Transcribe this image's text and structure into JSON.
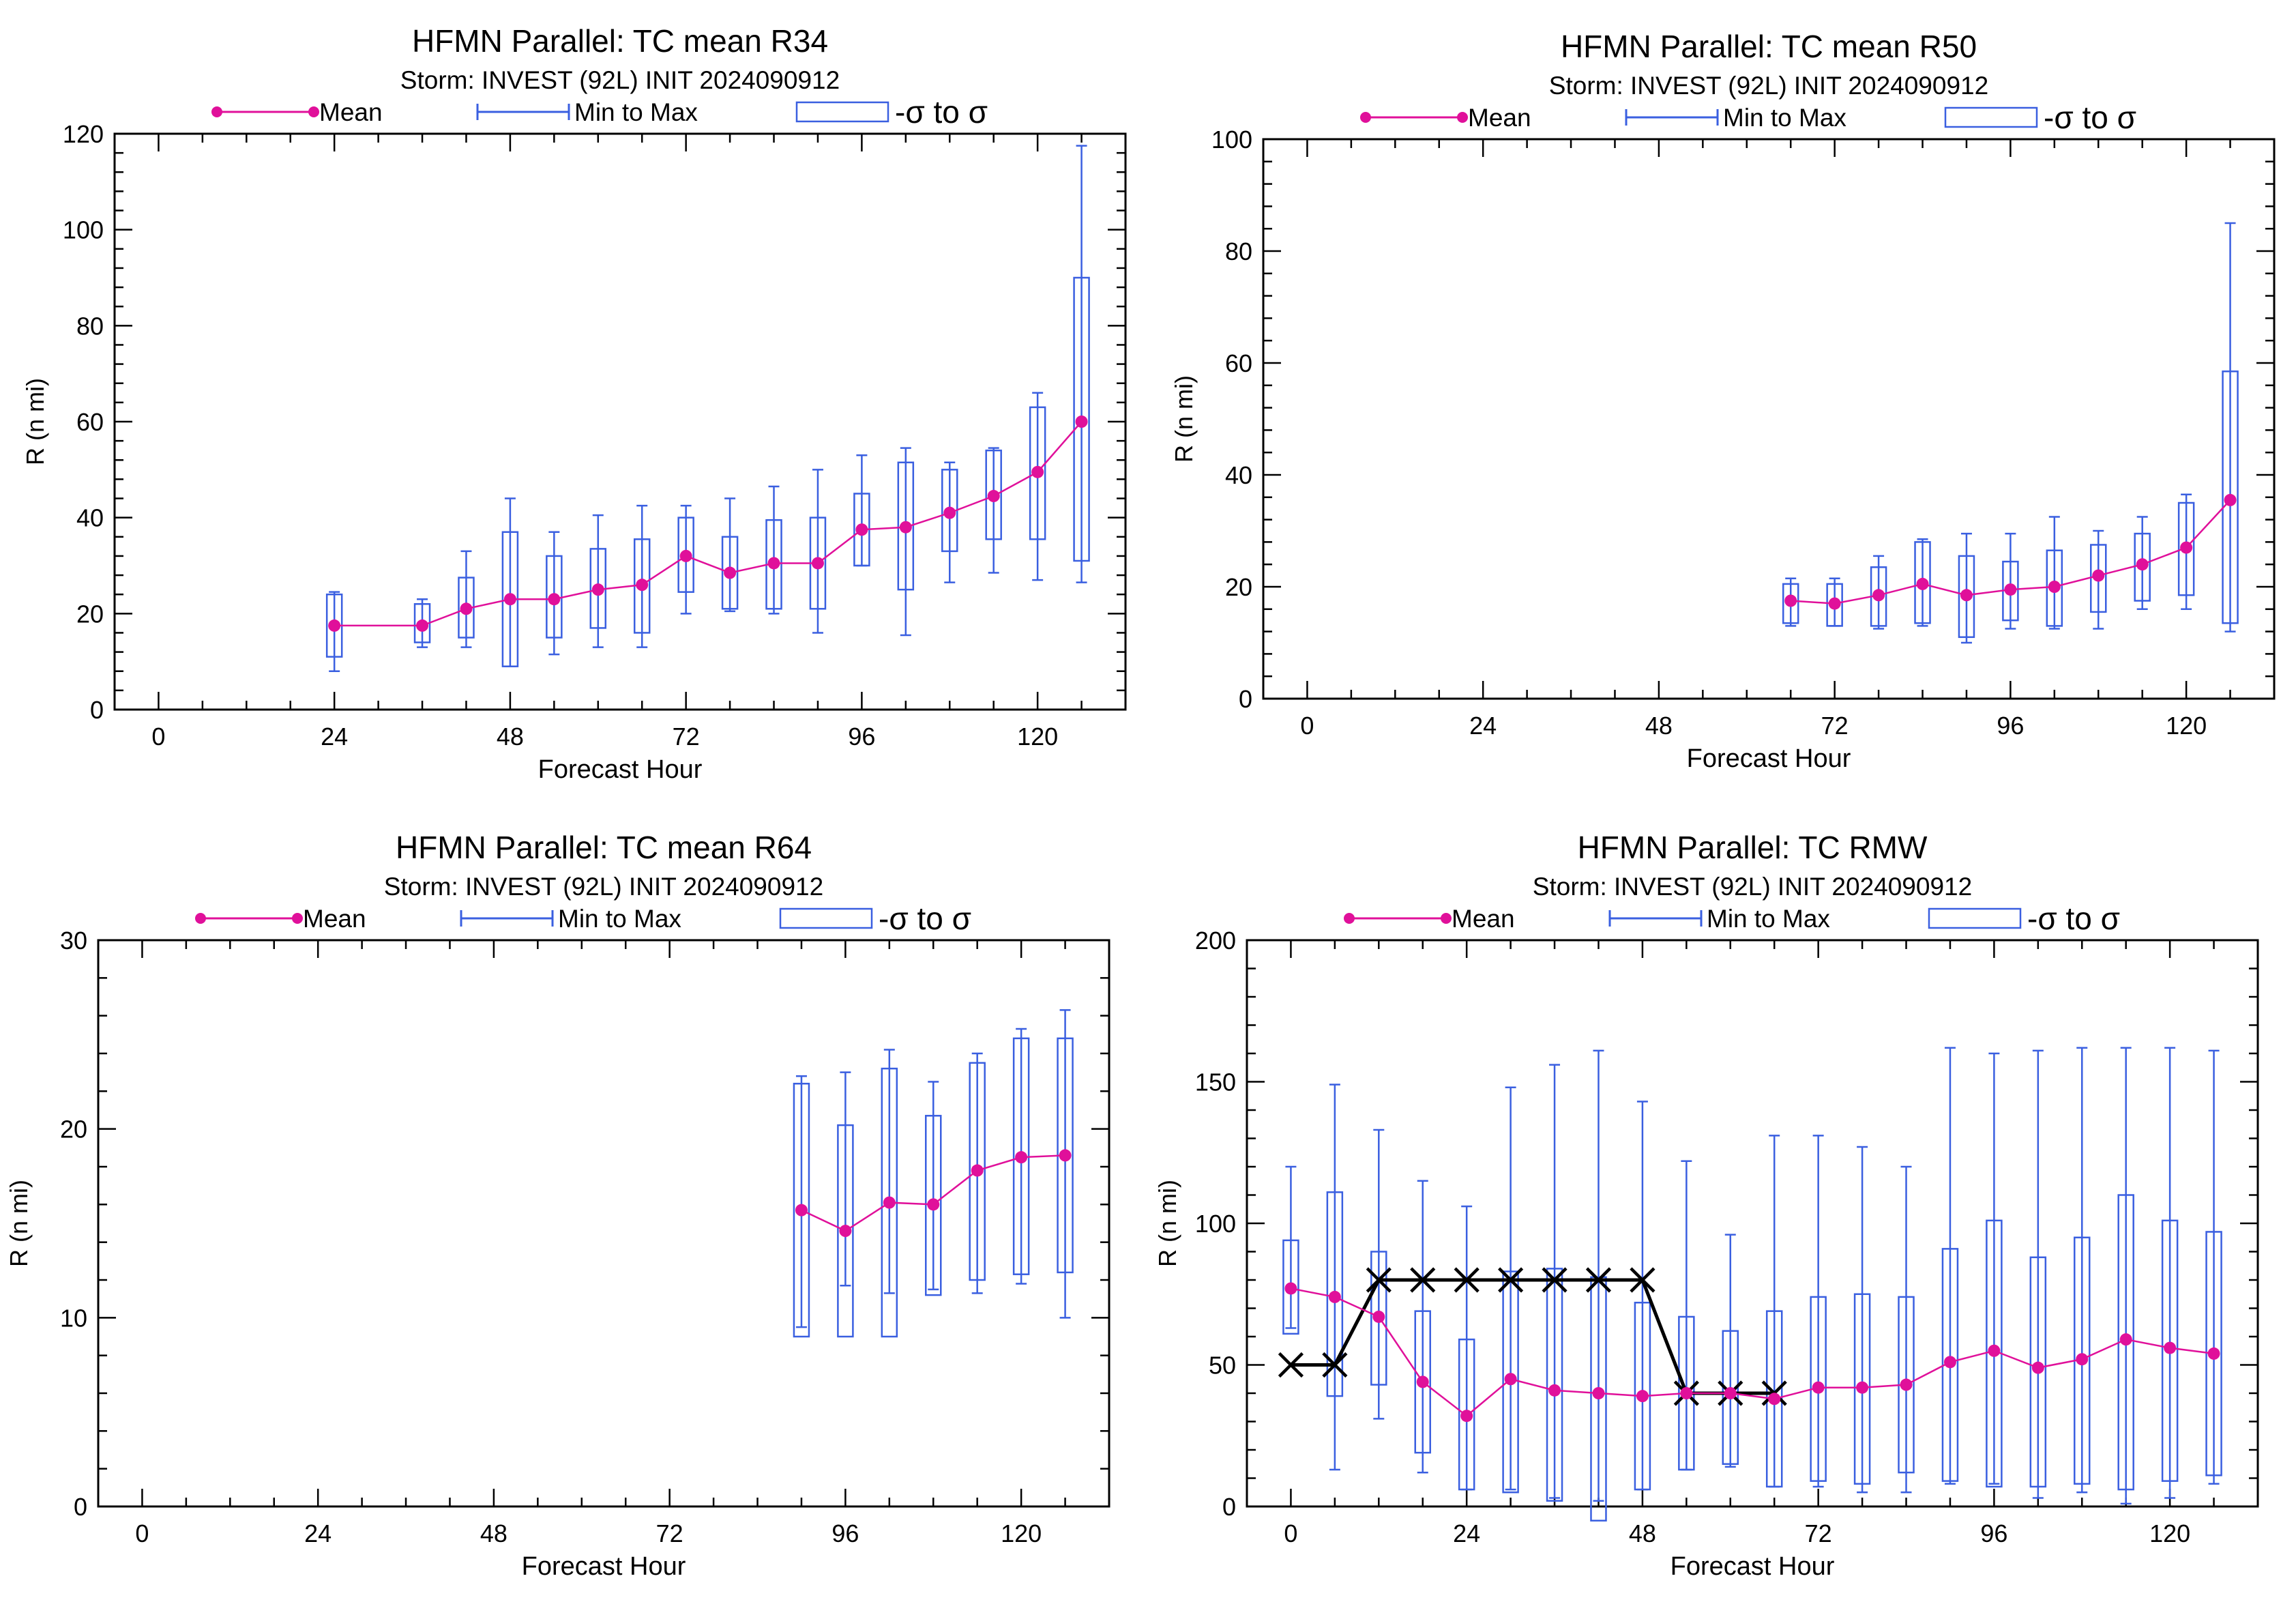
{
  "legend": {
    "mean_label": "Mean",
    "minmax_label": "Min to Max",
    "sigma_label": "-σ to σ"
  },
  "colors": {
    "mean": "#E0109A",
    "box": "#3A5FE0",
    "best_track": "#000000",
    "axis": "#000000"
  },
  "chart_data": [
    {
      "type": "box",
      "title": "HFMN Parallel: TC mean R34",
      "subtitle": "Storm: INVEST (92L) INIT 2024090912",
      "xlabel": "Forecast Hour",
      "ylabel": "R (n mi)",
      "xlim": [
        -6,
        132
      ],
      "ylim": [
        0,
        120
      ],
      "xticks": [
        0,
        24,
        48,
        72,
        96,
        120
      ],
      "yticks": [
        0,
        20,
        40,
        60,
        80,
        100,
        120
      ],
      "x": [
        24,
        36,
        42,
        48,
        54,
        60,
        66,
        72,
        78,
        84,
        90,
        96,
        102,
        108,
        114,
        120,
        126
      ],
      "mean": [
        17.5,
        17.5,
        21,
        23,
        23,
        25,
        26,
        32,
        28.5,
        30.5,
        30.5,
        37.5,
        38,
        41,
        44.5,
        49.5,
        60
      ],
      "min": [
        8,
        13,
        13,
        9,
        11.5,
        13,
        13,
        20,
        20.5,
        20,
        16,
        30,
        15.5,
        26.5,
        28.5,
        27,
        26.5
      ],
      "max": [
        24.5,
        23,
        33,
        44,
        37,
        40.5,
        42.5,
        42.5,
        44,
        46.5,
        50,
        53,
        54.5,
        51.5,
        54.5,
        66,
        117.5
      ],
      "sigma_low": [
        11,
        14,
        15,
        9,
        15,
        17,
        16,
        24.5,
        21,
        21,
        21,
        30,
        25,
        33,
        35.5,
        35.5,
        31
      ],
      "sigma_high": [
        24,
        22,
        27.5,
        37,
        32,
        33.5,
        35.5,
        40,
        36,
        39.5,
        40,
        45,
        51.5,
        50,
        54,
        63,
        90
      ],
      "best_track": null
    },
    {
      "type": "box",
      "title": "HFMN Parallel: TC mean R50",
      "subtitle": "Storm: INVEST (92L) INIT 2024090912",
      "xlabel": "Forecast Hour",
      "ylabel": "R (n mi)",
      "xlim": [
        -6,
        132
      ],
      "ylim": [
        0,
        100
      ],
      "xticks": [
        0,
        24,
        48,
        72,
        96,
        120
      ],
      "yticks": [
        0,
        20,
        40,
        60,
        80,
        100
      ],
      "x": [
        66,
        72,
        78,
        84,
        90,
        96,
        102,
        108,
        114,
        120,
        126
      ],
      "mean": [
        17.5,
        17,
        18.5,
        20.5,
        18.5,
        19.5,
        20,
        22,
        24,
        27,
        35.5
      ],
      "min": [
        13,
        13,
        12.5,
        13,
        10,
        12.5,
        12.5,
        12.5,
        16,
        16,
        12
      ],
      "max": [
        21.5,
        21.5,
        25.5,
        28.5,
        29.5,
        29.5,
        32.5,
        30,
        32.5,
        36.5,
        85
      ],
      "sigma_low": [
        13.5,
        13,
        13,
        13.5,
        11,
        14,
        13,
        15.5,
        17.5,
        18.5,
        13.5
      ],
      "sigma_high": [
        20.5,
        20.5,
        23.5,
        28,
        25.5,
        24.5,
        26.5,
        27.5,
        29.5,
        35,
        58.5
      ],
      "best_track": null
    },
    {
      "type": "box",
      "title": "HFMN Parallel: TC mean R64",
      "subtitle": "Storm: INVEST (92L) INIT 2024090912",
      "xlabel": "Forecast Hour",
      "ylabel": "R (n mi)",
      "xlim": [
        -6,
        132
      ],
      "ylim": [
        0,
        30
      ],
      "xticks": [
        0,
        24,
        48,
        72,
        96,
        120
      ],
      "yticks": [
        0,
        10,
        20,
        30
      ],
      "x": [
        90,
        96,
        102,
        108,
        114,
        120,
        126
      ],
      "mean": [
        15.7,
        14.6,
        16.1,
        16,
        17.8,
        18.5,
        18.6
      ],
      "min": [
        9.5,
        11.7,
        11.3,
        11.5,
        11.3,
        11.8,
        10
      ],
      "max": [
        22.8,
        23,
        24.2,
        22.5,
        24,
        25.3,
        26.3
      ],
      "sigma_low": [
        9,
        9,
        9,
        11.2,
        12,
        12.3,
        12.4
      ],
      "sigma_high": [
        22.4,
        20.2,
        23.2,
        20.7,
        23.5,
        24.8,
        24.8
      ],
      "best_track": null
    },
    {
      "type": "box",
      "title": "HFMN Parallel: TC RMW",
      "subtitle": "Storm: INVEST (92L) INIT 2024090912",
      "xlabel": "Forecast Hour",
      "ylabel": "R (n mi)",
      "xlim": [
        -6,
        132
      ],
      "ylim": [
        0,
        200
      ],
      "xticks": [
        0,
        24,
        48,
        72,
        96,
        120
      ],
      "yticks": [
        0,
        50,
        100,
        150,
        200
      ],
      "x": [
        0,
        6,
        12,
        18,
        24,
        30,
        36,
        42,
        48,
        54,
        60,
        66,
        72,
        78,
        84,
        90,
        96,
        102,
        108,
        114,
        120,
        126
      ],
      "mean": [
        77,
        74,
        67,
        44,
        32,
        45,
        41,
        40,
        39,
        40,
        40,
        38,
        42,
        42,
        43,
        51,
        55,
        49,
        52,
        59,
        56,
        54
      ],
      "min": [
        63,
        13,
        31,
        12,
        6,
        6,
        3,
        2,
        6,
        13,
        14,
        7,
        7,
        5,
        5,
        8,
        8,
        3,
        5,
        1,
        3,
        8
      ],
      "max": [
        120,
        149,
        133,
        115,
        106,
        148,
        156,
        161,
        143,
        122,
        96,
        131,
        131,
        127,
        120,
        162,
        160,
        161,
        162,
        162,
        162,
        161
      ],
      "sigma_low": [
        61,
        39,
        43,
        19,
        6,
        5,
        2,
        -5,
        6,
        13,
        15,
        7,
        9,
        8,
        12,
        9,
        7,
        7,
        8,
        6,
        9,
        11
      ],
      "sigma_high": [
        94,
        111,
        90,
        69,
        59,
        83,
        84,
        81,
        72,
        67,
        62,
        69,
        74,
        75,
        74,
        91,
        101,
        88,
        95,
        110,
        101,
        97
      ],
      "best_track": {
        "x": [
          0,
          6,
          12,
          18,
          24,
          30,
          36,
          42,
          48,
          54,
          60,
          66
        ],
        "y": [
          50,
          50,
          80,
          80,
          80,
          80,
          80,
          80,
          80,
          40,
          40,
          40
        ]
      }
    }
  ]
}
